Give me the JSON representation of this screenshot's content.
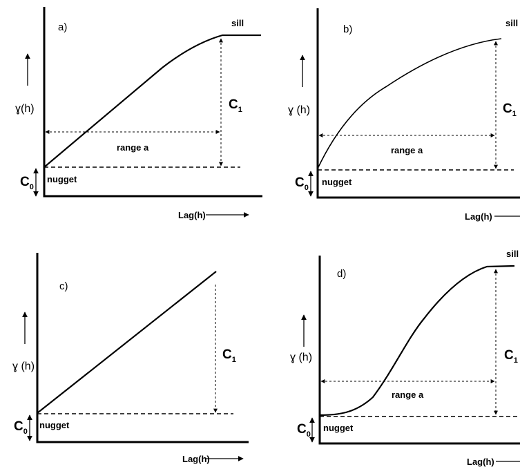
{
  "panels": [
    {
      "id": "a",
      "letter": "a)",
      "ylabel": "ɣ(h)",
      "xlabel": "Lag(h)",
      "sill": "sill",
      "c1": "C",
      "c1_sub": "1",
      "c0": "C",
      "c0_sub": "0",
      "nugget": "nugget",
      "range": "range  a"
    },
    {
      "id": "b",
      "letter": "b)",
      "ylabel": "ɣ (h)",
      "xlabel": "Lag(h)",
      "sill": "sill",
      "c1": "C",
      "c1_sub": "1",
      "c0": "C",
      "c0_sub": "0",
      "nugget": "nugget",
      "range": "range  a"
    },
    {
      "id": "c",
      "letter": "c)",
      "ylabel": "ɣ (h)",
      "xlabel": "Lag(h)",
      "sill": "",
      "c1": "C",
      "c1_sub": "1",
      "c0": "C",
      "c0_sub": "0",
      "nugget": "nugget",
      "range": ""
    },
    {
      "id": "d",
      "letter": "d)",
      "ylabel": "ɣ (h)",
      "xlabel": "Lag(h)",
      "sill": "sill",
      "c1": "C",
      "c1_sub": "1",
      "c0": "C",
      "c0_sub": "0",
      "nugget": "nugget",
      "range": "range  a"
    }
  ]
}
